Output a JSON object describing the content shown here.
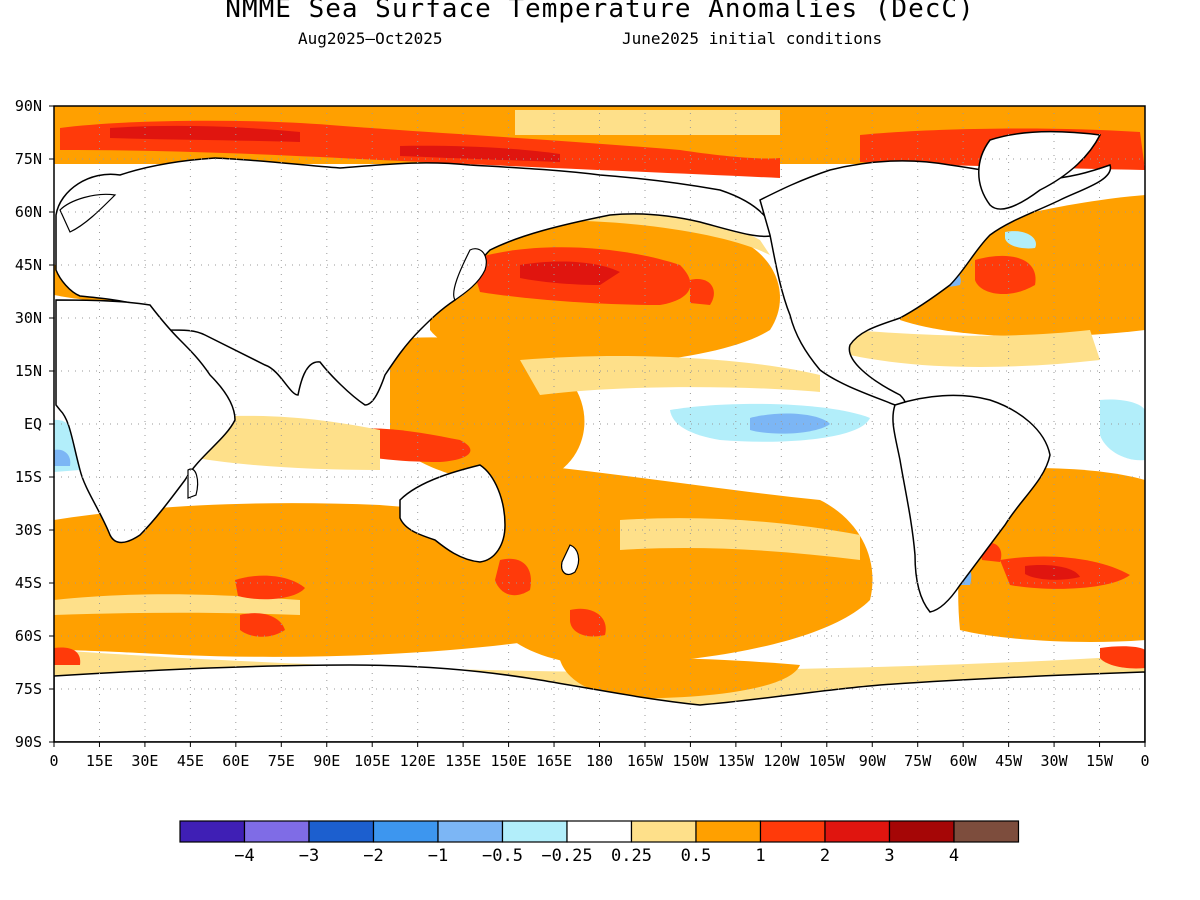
{
  "title": "NMME Sea Surface Temperature Anomalies (DecC)",
  "subtitle_left": "Aug2025—Oct2025",
  "subtitle_right": "June2025 initial conditions",
  "colors": {
    "land": "#ffffff",
    "coast": "#000000",
    "grid": "#9a9a9a"
  },
  "map": {
    "lat_labels": [
      "90N",
      "75N",
      "60N",
      "45N",
      "30N",
      "15N",
      "EQ",
      "15S",
      "30S",
      "45S",
      "60S",
      "75S",
      "90S"
    ],
    "lon_labels": [
      "0",
      "15E",
      "30E",
      "45E",
      "60E",
      "75E",
      "90E",
      "105E",
      "120E",
      "135E",
      "150E",
      "165E",
      "180",
      "165W",
      "150W",
      "135W",
      "120W",
      "105W",
      "90W",
      "75W",
      "60W",
      "45W",
      "30W",
      "15W",
      "0"
    ],
    "grid": true
  },
  "colorbar": {
    "colors": [
      "#3f1fb5",
      "#7f6ce6",
      "#1c5fcf",
      "#3d96ef",
      "#7cb6f5",
      "#b2eefa",
      "#ffffff",
      "#fee08a",
      "#ffa000",
      "#ff3a0a",
      "#e0150f",
      "#a50606",
      "#7d4d3d"
    ],
    "labels": [
      "−4",
      "−3",
      "−2",
      "−1",
      "−0.5",
      "−0.25",
      "0.25",
      "0.5",
      "1",
      "2",
      "3",
      "4"
    ]
  }
}
